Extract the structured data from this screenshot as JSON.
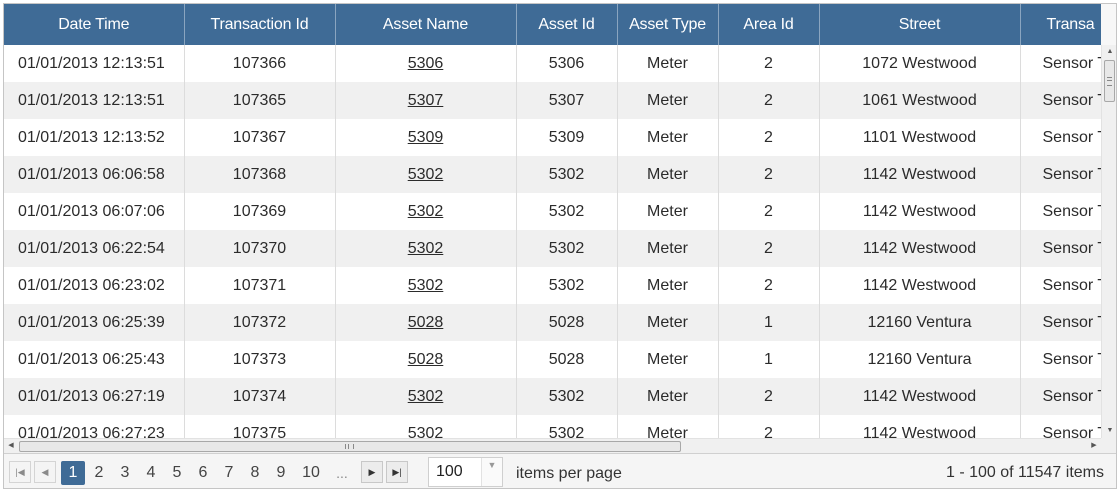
{
  "columns": [
    "Date Time",
    "Transaction Id",
    "Asset Name",
    "Asset Id",
    "Asset Type",
    "Area Id",
    "Street",
    "Transa"
  ],
  "rows": [
    {
      "datetime": "01/01/2013 12:13:51",
      "txn": "107366",
      "asset_name": "5306",
      "asset_id": "5306",
      "asset_type": "Meter",
      "area": "2",
      "street": "1072 Westwood",
      "trans_type": "Sensor T"
    },
    {
      "datetime": "01/01/2013 12:13:51",
      "txn": "107365",
      "asset_name": "5307",
      "asset_id": "5307",
      "asset_type": "Meter",
      "area": "2",
      "street": "1061 Westwood",
      "trans_type": "Sensor T"
    },
    {
      "datetime": "01/01/2013 12:13:52",
      "txn": "107367",
      "asset_name": "5309",
      "asset_id": "5309",
      "asset_type": "Meter",
      "area": "2",
      "street": "1101 Westwood",
      "trans_type": "Sensor T"
    },
    {
      "datetime": "01/01/2013 06:06:58",
      "txn": "107368",
      "asset_name": "5302",
      "asset_id": "5302",
      "asset_type": "Meter",
      "area": "2",
      "street": "1142 Westwood",
      "trans_type": "Sensor T"
    },
    {
      "datetime": "01/01/2013 06:07:06",
      "txn": "107369",
      "asset_name": "5302",
      "asset_id": "5302",
      "asset_type": "Meter",
      "area": "2",
      "street": "1142 Westwood",
      "trans_type": "Sensor T"
    },
    {
      "datetime": "01/01/2013 06:22:54",
      "txn": "107370",
      "asset_name": "5302",
      "asset_id": "5302",
      "asset_type": "Meter",
      "area": "2",
      "street": "1142 Westwood",
      "trans_type": "Sensor T"
    },
    {
      "datetime": "01/01/2013 06:23:02",
      "txn": "107371",
      "asset_name": "5302",
      "asset_id": "5302",
      "asset_type": "Meter",
      "area": "2",
      "street": "1142 Westwood",
      "trans_type": "Sensor T"
    },
    {
      "datetime": "01/01/2013 06:25:39",
      "txn": "107372",
      "asset_name": "5028",
      "asset_id": "5028",
      "asset_type": "Meter",
      "area": "1",
      "street": "12160 Ventura",
      "trans_type": "Sensor T"
    },
    {
      "datetime": "01/01/2013 06:25:43",
      "txn": "107373",
      "asset_name": "5028",
      "asset_id": "5028",
      "asset_type": "Meter",
      "area": "1",
      "street": "12160 Ventura",
      "trans_type": "Sensor T"
    },
    {
      "datetime": "01/01/2013 06:27:19",
      "txn": "107374",
      "asset_name": "5302",
      "asset_id": "5302",
      "asset_type": "Meter",
      "area": "2",
      "street": "1142 Westwood",
      "trans_type": "Sensor T"
    },
    {
      "datetime": "01/01/2013 06:27:23",
      "txn": "107375",
      "asset_name": "5302",
      "asset_id": "5302",
      "asset_type": "Meter",
      "area": "2",
      "street": "1142 Westwood",
      "trans_type": "Sensor T"
    }
  ],
  "pager": {
    "first_icon": "first-page-icon",
    "prev_icon": "prev-page-icon",
    "next_icon": "next-page-icon",
    "last_icon": "last-page-icon",
    "pages": [
      "1",
      "2",
      "3",
      "4",
      "5",
      "6",
      "7",
      "8",
      "9",
      "10",
      "..."
    ],
    "current_page": "1",
    "page_size": "100",
    "items_per_page_label": "items per page",
    "summary": "1 - 100 of 11547 items"
  },
  "colors": {
    "header_bg": "#3f6b96",
    "alt_row_bg": "#f0f0f0",
    "active_page_bg": "#3f6b96"
  }
}
